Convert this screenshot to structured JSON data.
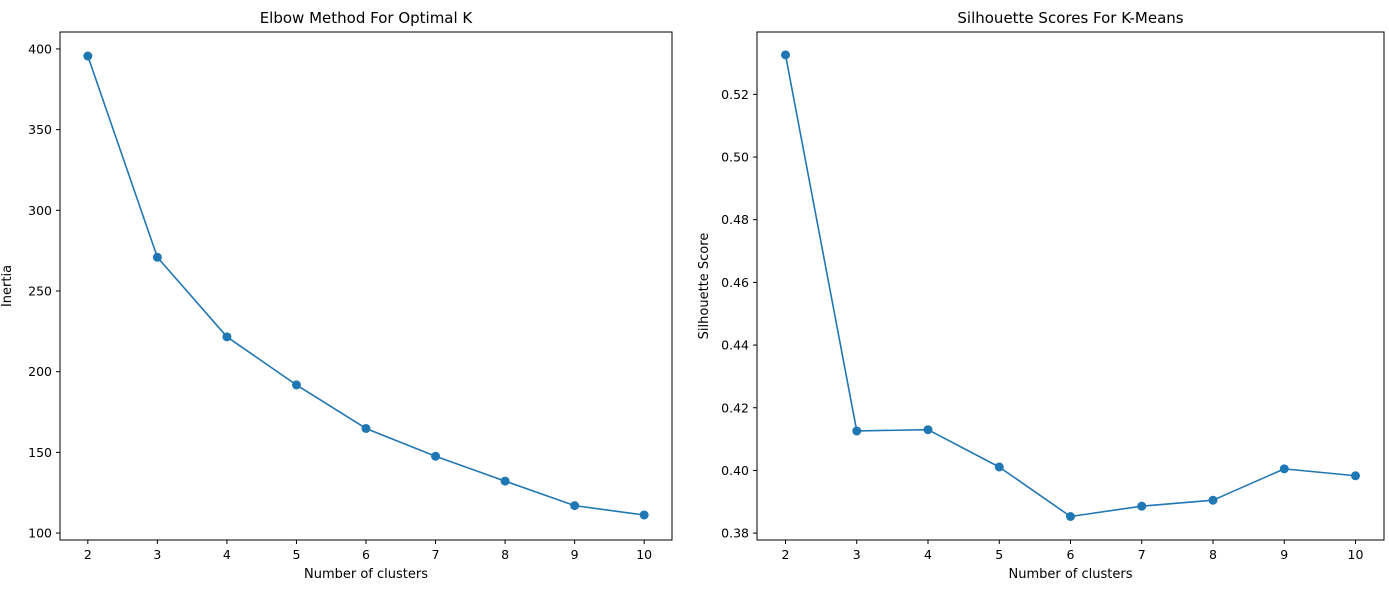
{
  "chart_data": [
    {
      "type": "line",
      "title": "Elbow Method For Optimal K",
      "xlabel": "Number of clusters",
      "ylabel": "Inertia",
      "x": [
        2,
        3,
        4,
        5,
        6,
        7,
        8,
        9,
        10
      ],
      "xticks": [
        2,
        3,
        4,
        5,
        6,
        7,
        8,
        9,
        10
      ],
      "xlim": [
        1.6,
        10.4
      ],
      "ylim": [
        95.7,
        410.5
      ],
      "yticks": [
        100,
        150,
        200,
        250,
        300,
        350,
        400
      ],
      "ytick_decimals": 0,
      "series": [
        {
          "values": [
            395.6,
            270.9,
            221.6,
            191.8,
            164.8,
            147.6,
            132.2,
            117.0,
            111.2
          ],
          "color": "#1f77b4",
          "marker": "circle"
        }
      ],
      "grid": false,
      "legend": null
    },
    {
      "type": "line",
      "title": "Silhouette Scores For K-Means",
      "xlabel": "Number of clusters",
      "ylabel": "Silhouette Score",
      "x": [
        2,
        3,
        4,
        5,
        6,
        7,
        8,
        9,
        10
      ],
      "xticks": [
        2,
        3,
        4,
        5,
        6,
        7,
        8,
        9,
        10
      ],
      "xlim": [
        1.6,
        10.4
      ],
      "ylim": [
        0.3778,
        0.5399
      ],
      "yticks": [
        0.38,
        0.4,
        0.42,
        0.44,
        0.46,
        0.48,
        0.5,
        0.52
      ],
      "ytick_decimals": 2,
      "series": [
        {
          "values": [
            0.5326,
            0.4126,
            0.413,
            0.4011,
            0.3853,
            0.3886,
            0.3905,
            0.4005,
            0.3983
          ],
          "color": "#1f77b4",
          "marker": "circle"
        }
      ],
      "grid": false,
      "legend": null
    }
  ]
}
